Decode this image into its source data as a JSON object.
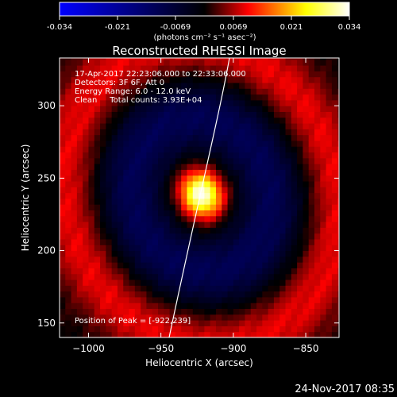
{
  "colorbar": {
    "ticks": [
      "-0.034",
      "-0.021",
      "-0.0069",
      "0.0069",
      "0.021",
      "0.034"
    ],
    "unit_label": "(photons cm⁻² s⁻¹ asec⁻²)",
    "range": [
      -0.034,
      0.034
    ],
    "colormap": [
      "#0000ff",
      "#000000",
      "#ff0000",
      "#ffff00",
      "#ffffff"
    ]
  },
  "chart_data": {
    "type": "heatmap",
    "title": "Reconstructed RHESSI Image",
    "xlabel": "Heliocentric X (arcsec)",
    "ylabel": "Heliocentric Y (arcsec)",
    "xlim": [
      -1020,
      -827
    ],
    "ylim": [
      140,
      333
    ],
    "xticks": [
      "−1000",
      "−950",
      "−900",
      "−850"
    ],
    "xtick_values": [
      -1000,
      -950,
      -900,
      -850
    ],
    "yticks": [
      "150",
      "200",
      "250",
      "300"
    ],
    "ytick_values": [
      150,
      200,
      250,
      300
    ],
    "annotations": [
      "17-Apr-2017 22:23:06.000 to 22:33:06.000",
      "Detectors: 3F 6F, Att 0",
      "Energy Range: 6.0 - 12.0 keV",
      "Clean     Total counts: 3.93E+04"
    ],
    "peak_label": "Position of Peak = [-922,239]",
    "peak": [
      -922,
      239
    ],
    "peak_value": 0.034,
    "grid": false
  },
  "timestamp": "24-Nov-2017 08:35"
}
